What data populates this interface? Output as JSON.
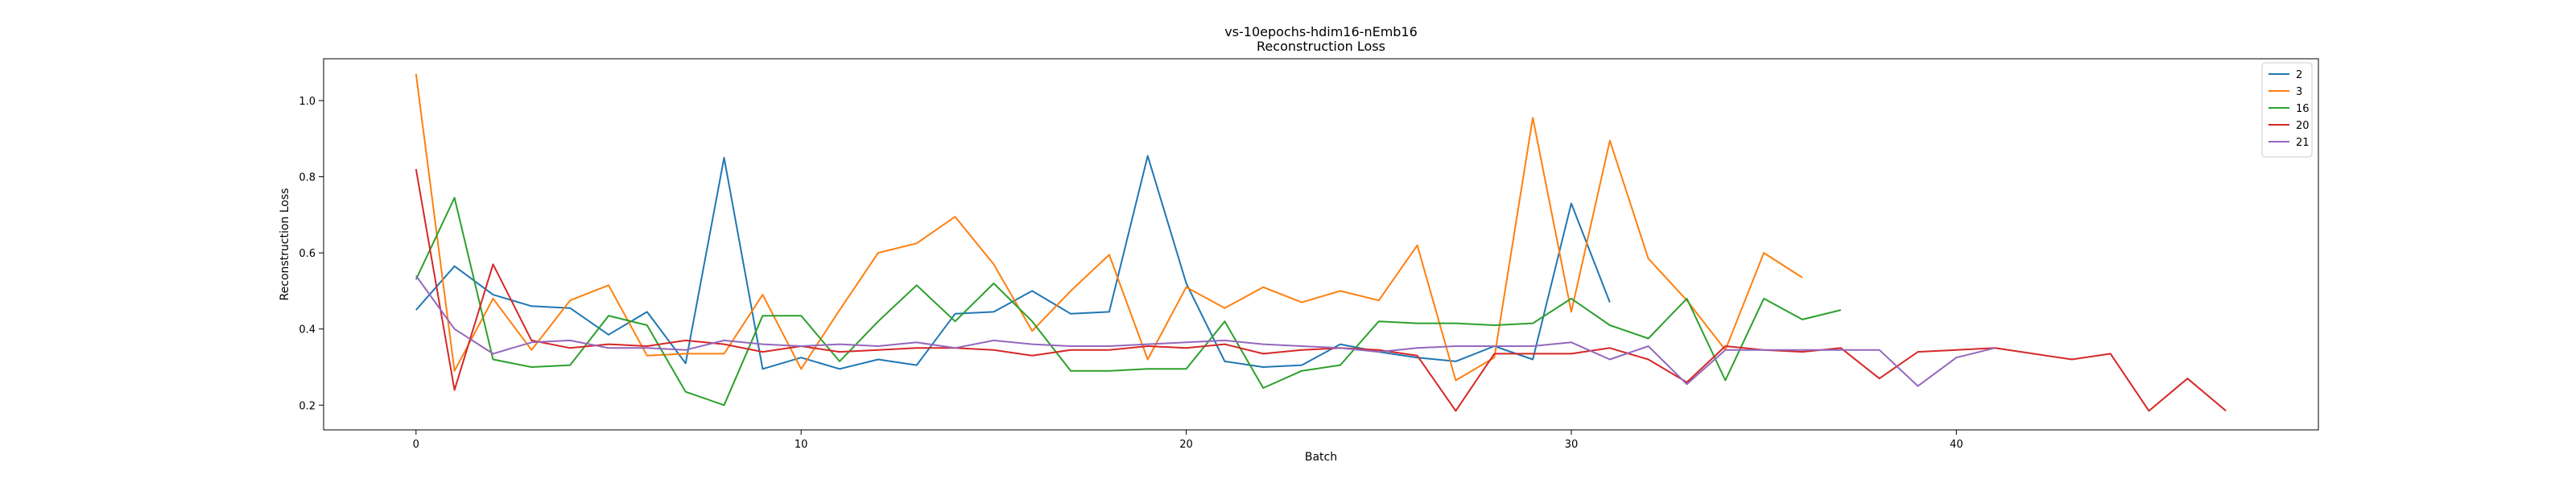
{
  "chart_data": {
    "type": "line",
    "title": "vs-10epochs-hdim16-nEmb16",
    "subtitle": "Reconstruction Loss",
    "xlabel": "Batch",
    "ylabel": "Reconstruction Loss",
    "xlim": [
      -2.4,
      49.4
    ],
    "ylim": [
      0.135,
      1.11
    ],
    "xticks": [
      "0",
      "10",
      "20",
      "30",
      "40"
    ],
    "yticks": [
      "0.2",
      "0.4",
      "0.6",
      "0.8",
      "1.0"
    ],
    "grid": false,
    "legend": "top-right",
    "series": [
      {
        "name": "2",
        "color": "#1f77b4",
        "values": [
          0.45,
          0.565,
          0.49,
          0.46,
          0.455,
          0.385,
          0.445,
          0.31,
          0.85,
          0.295,
          0.325,
          0.295,
          0.32,
          0.305,
          0.44,
          0.445,
          0.5,
          0.44,
          0.445,
          0.855,
          0.52,
          0.315,
          0.3,
          0.305,
          0.36,
          0.34,
          0.325,
          0.315,
          0.355,
          0.32,
          0.73,
          0.47
        ]
      },
      {
        "name": "3",
        "color": "#ff7f0e",
        "values": [
          1.07,
          0.29,
          0.48,
          0.345,
          0.475,
          0.515,
          0.33,
          0.335,
          0.335,
          0.49,
          0.295,
          0.45,
          0.6,
          0.625,
          0.695,
          0.57,
          0.395,
          0.5,
          0.595,
          0.32,
          0.51,
          0.455,
          0.51,
          0.47,
          0.5,
          0.475,
          0.62,
          0.265,
          0.325,
          0.955,
          0.445,
          0.895,
          0.585,
          0.475,
          0.345,
          0.6,
          0.535
        ]
      },
      {
        "name": "16",
        "color": "#2ca02c",
        "values": [
          0.53,
          0.745,
          0.32,
          0.3,
          0.305,
          0.435,
          0.41,
          0.235,
          0.2,
          0.435,
          0.435,
          0.315,
          0.42,
          0.515,
          0.42,
          0.52,
          0.42,
          0.29,
          0.29,
          0.295,
          0.295,
          0.42,
          0.245,
          0.29,
          0.305,
          0.42,
          0.415,
          0.415,
          0.41,
          0.415,
          0.48,
          0.41,
          0.375,
          0.48,
          0.265,
          0.48,
          0.425,
          0.45
        ]
      },
      {
        "name": "20",
        "color": "#d62728",
        "values": [
          0.82,
          0.24,
          0.57,
          0.37,
          0.35,
          0.36,
          0.355,
          0.37,
          0.36,
          0.34,
          0.355,
          0.34,
          0.345,
          0.35,
          0.35,
          0.345,
          0.33,
          0.345,
          0.345,
          0.355,
          0.35,
          0.36,
          0.335,
          0.345,
          0.35,
          0.345,
          0.33,
          0.185,
          0.335,
          0.335,
          0.335,
          0.35,
          0.32,
          0.26,
          0.355,
          0.345,
          0.34,
          0.35,
          0.27,
          0.34,
          0.345,
          0.35,
          0.335,
          0.32,
          0.335,
          0.185,
          0.27,
          0.185
        ]
      },
      {
        "name": "21",
        "color": "#9467bd",
        "values": [
          0.54,
          0.4,
          0.335,
          0.365,
          0.37,
          0.35,
          0.35,
          0.345,
          0.37,
          0.36,
          0.355,
          0.36,
          0.355,
          0.365,
          0.35,
          0.37,
          0.36,
          0.355,
          0.355,
          0.36,
          0.365,
          0.37,
          0.36,
          0.355,
          0.35,
          0.34,
          0.35,
          0.355,
          0.355,
          0.355,
          0.365,
          0.32,
          0.355,
          0.255,
          0.345,
          0.345,
          0.345,
          0.345,
          0.345,
          0.25,
          0.325,
          0.35
        ]
      }
    ]
  }
}
